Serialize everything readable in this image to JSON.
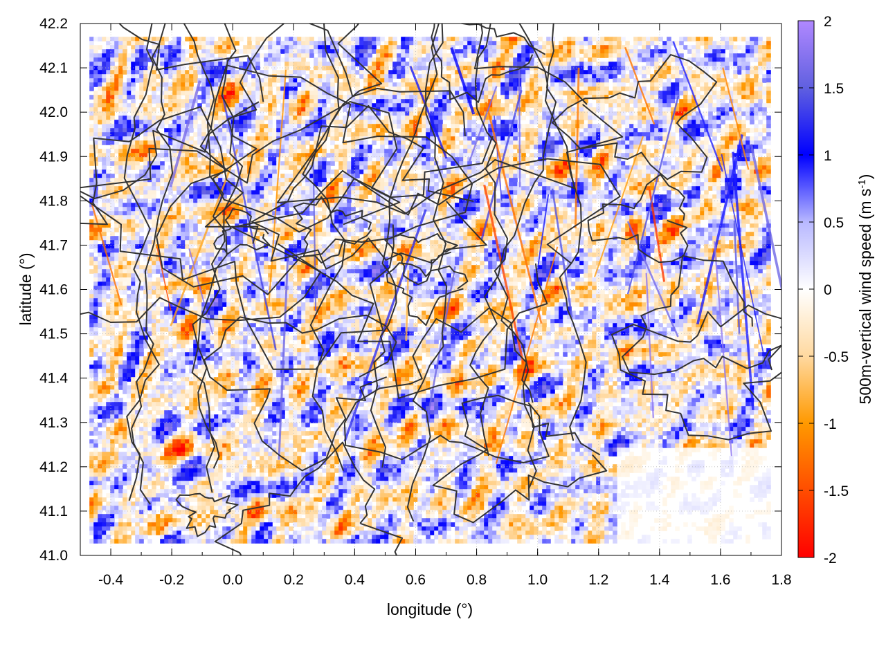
{
  "chart_data": {
    "type": "heatmap",
    "title": "",
    "xlabel": "longitude (°)",
    "ylabel": "latitude (°)",
    "colorbar_label": "500m-vertical wind speed (m s",
    "colorbar_label_sup": "-1",
    "colorbar_label_close": ")",
    "xlim": [
      -0.5,
      1.8
    ],
    "ylim": [
      41.0,
      42.2
    ],
    "x_ticks": [
      -0.4,
      -0.2,
      0.0,
      0.2,
      0.4,
      0.6,
      0.8,
      1.0,
      1.2,
      1.4,
      1.6,
      1.8
    ],
    "x_tick_labels": [
      "-0.4",
      "-0.2",
      "0.0",
      "0.2",
      "0.4",
      "0.6",
      "0.8",
      "1.0",
      "1.2",
      "1.4",
      "1.6",
      "1.8"
    ],
    "y_ticks": [
      41.0,
      41.1,
      41.2,
      41.3,
      41.4,
      41.5,
      41.6,
      41.7,
      41.8,
      41.9,
      42.0,
      42.1,
      42.2
    ],
    "y_tick_labels": [
      "41.0",
      "41.1",
      "41.2",
      "41.3",
      "41.4",
      "41.5",
      "41.6",
      "41.7",
      "41.8",
      "41.9",
      "42.0",
      "42.1",
      "42.2"
    ],
    "color_range": [
      -2,
      2
    ],
    "colorbar_ticks": [
      2,
      1.5,
      1,
      0.5,
      0,
      -0.5,
      -1,
      -1.5,
      -2
    ],
    "colorbar_tick_labels": [
      "2",
      "1.5",
      "1",
      "0.5",
      "0",
      "-0.5",
      "-1",
      "-1.5",
      "-2"
    ],
    "colormap": [
      {
        "value": -2,
        "color": "#ff0000"
      },
      {
        "value": -1,
        "color": "#ff9900"
      },
      {
        "value": -0.5,
        "color": "#ffd9a0"
      },
      {
        "value": 0,
        "color": "#ffffff"
      },
      {
        "value": 0.5,
        "color": "#b8b8ff"
      },
      {
        "value": 1,
        "color": "#0000ff"
      },
      {
        "value": 1.5,
        "color": "#6060e0"
      },
      {
        "value": 2,
        "color": "#b088ff"
      }
    ],
    "data_extent": {
      "lon": [
        -0.47,
        1.76
      ],
      "lat": [
        41.03,
        42.17
      ]
    },
    "grid": true,
    "contours": "terrain elevation isolines (unlabeled)",
    "contour_color": "#333333"
  }
}
